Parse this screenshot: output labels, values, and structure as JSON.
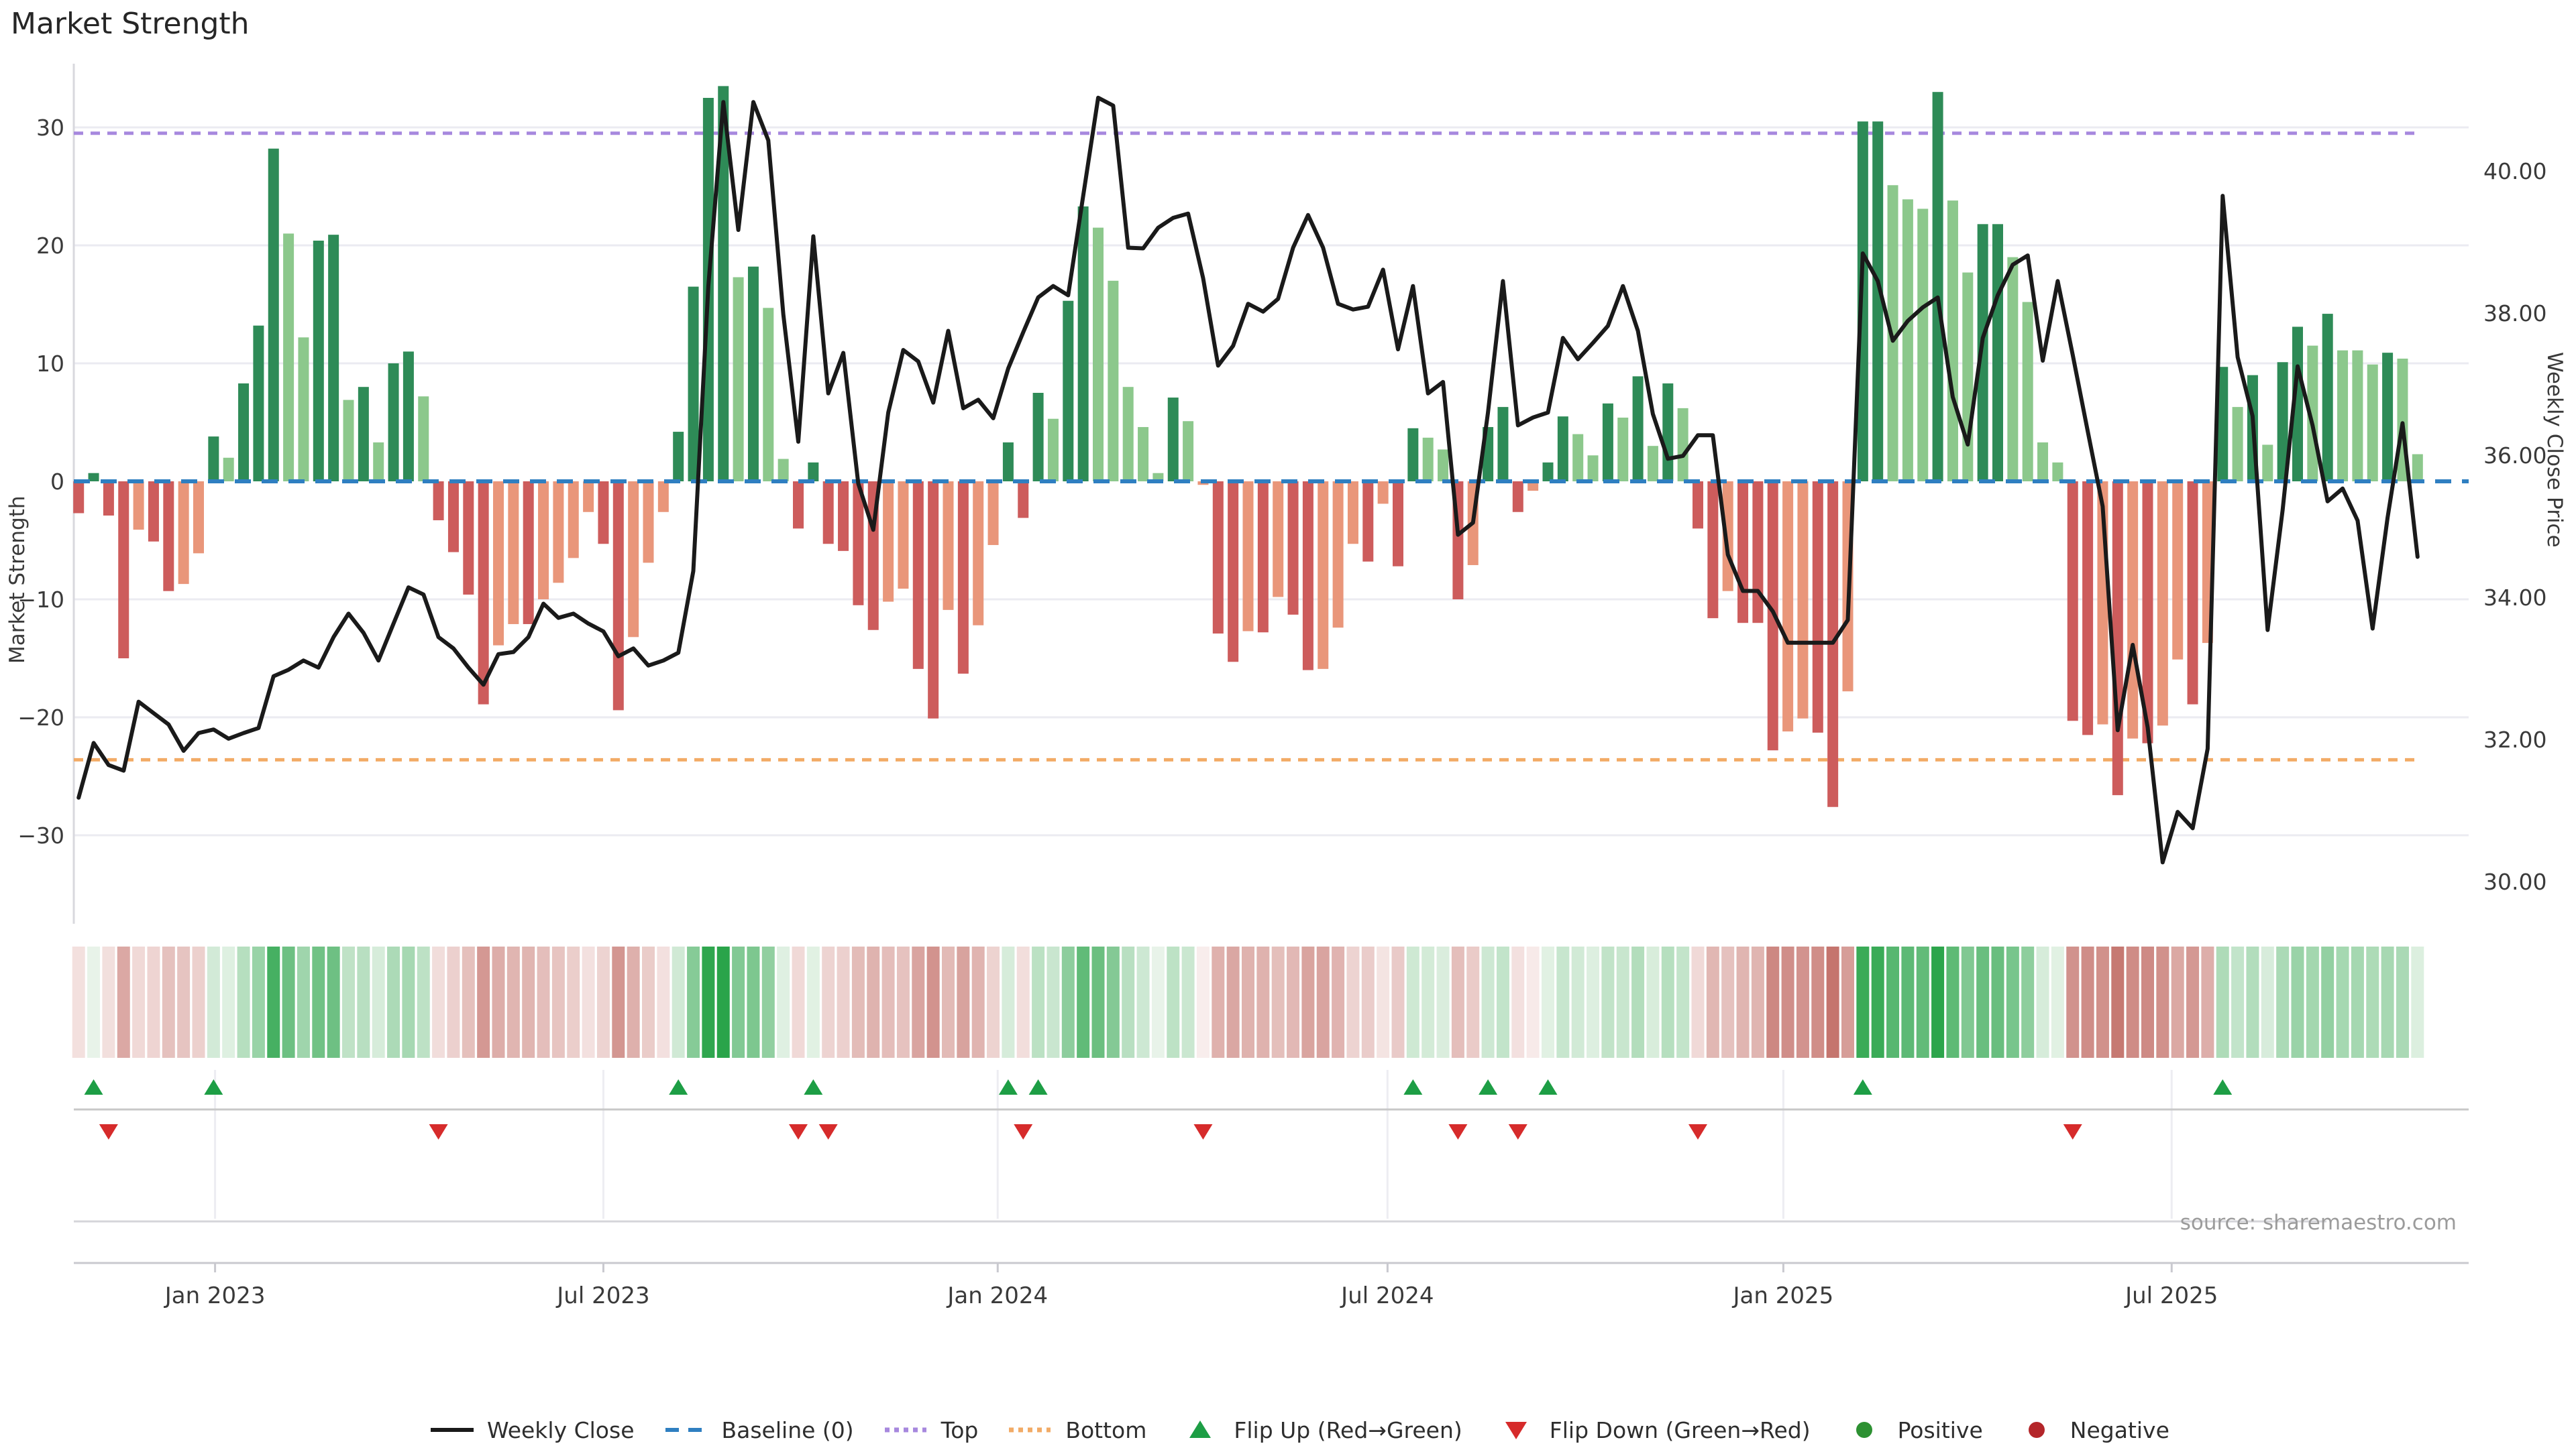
{
  "title": "Market Strength",
  "y_left": {
    "label": "Market Strength",
    "ticks": [
      30,
      20,
      10,
      0,
      -10,
      -20,
      -30
    ],
    "tick_labels": [
      "30",
      "20",
      "10",
      "0",
      "−10",
      "−20",
      "−30"
    ]
  },
  "y_right": {
    "label": "Weekly Close Price",
    "ticks": [
      40,
      38,
      36,
      34,
      32,
      30
    ],
    "tick_labels": [
      "40.00",
      "38.00",
      "36.00",
      "34.00",
      "32.00",
      "30.00"
    ]
  },
  "x_ticks": [
    {
      "label": "Jan 2023",
      "week": 9.1
    },
    {
      "label": "Jul 2023",
      "week": 35.0
    },
    {
      "label": "Jan 2024",
      "week": 61.3
    },
    {
      "label": "Jul 2024",
      "week": 87.3
    },
    {
      "label": "Jan 2025",
      "week": 113.7
    },
    {
      "label": "Jul 2025",
      "week": 139.6
    }
  ],
  "source": "source: sharemaestro.com",
  "legend": [
    {
      "label": "Weekly Close",
      "swatch": "line",
      "color": "#1a1a1a"
    },
    {
      "label": "Baseline (0)",
      "swatch": "dashed-line",
      "color": "#2f7fc1"
    },
    {
      "label": "Top",
      "swatch": "dotted-line",
      "color": "#a788de"
    },
    {
      "label": "Bottom",
      "swatch": "dotted-line",
      "color": "#f2ab66"
    },
    {
      "label": "Flip Up (Red→Green)",
      "swatch": "triangle-up",
      "color": "#1d9e45"
    },
    {
      "label": "Flip Down (Green→Red)",
      "swatch": "triangle-down",
      "color": "#d62b2b"
    },
    {
      "label": "Positive",
      "swatch": "dot",
      "color": "#2d9132"
    },
    {
      "label": "Negative",
      "swatch": "dot",
      "color": "#b4262a"
    }
  ],
  "colors": {
    "bar_pos_dark": "#2e8b57",
    "bar_pos_light": "#8cc88c",
    "bar_neg_dark": "#cd5c5c",
    "bar_neg_light": "#e9967a",
    "line": "#1a1a1a",
    "baseline": "#2f7fc1",
    "top_line": "#a788de",
    "bottom_line": "#f2ab66",
    "flip_up": "#1d9e45",
    "flip_down": "#d62b2b",
    "heat_pos_max": "#2aa44a",
    "heat_pos_min": "#eef6ee",
    "heat_neg_max": "#c4736c",
    "heat_neg_min": "#f9efee",
    "grid": "#ebebf1",
    "spine": "#d8d8de",
    "axis": "#c9c9cf",
    "band_divider": "#c8c8c8",
    "tick_text": "#3a3a3a"
  },
  "chart_data": {
    "type": "bar+line",
    "title": "Market Strength",
    "ylabel_left": "Market Strength",
    "ylabel_right": "Weekly Close Price",
    "n_weeks": 157,
    "strength_ylim": [
      -37.5,
      35.4
    ],
    "price_ylim": [
      29.41,
      41.51
    ],
    "baseline": 0,
    "top_threshold": 29.5,
    "bottom_threshold": -23.6,
    "grid": true,
    "legend_position": "bottom",
    "strength": [
      -2.7,
      0.7,
      -2.9,
      -15.0,
      -4.1,
      -5.1,
      -9.3,
      -8.7,
      -6.1,
      3.8,
      2.0,
      8.3,
      13.2,
      28.2,
      21.0,
      12.2,
      20.4,
      20.9,
      6.9,
      8.0,
      3.3,
      10.0,
      11.0,
      7.2,
      -3.3,
      -6.0,
      -9.6,
      -18.9,
      -13.9,
      -12.1,
      -12.1,
      -10.0,
      -8.6,
      -6.5,
      -2.6,
      -5.3,
      -19.4,
      -13.2,
      -6.9,
      -2.6,
      4.2,
      16.5,
      32.5,
      33.5,
      17.3,
      18.2,
      14.7,
      1.9,
      -4.0,
      1.6,
      -5.3,
      -5.9,
      -10.5,
      -12.6,
      -10.2,
      -9.1,
      -15.9,
      -20.1,
      -10.9,
      -16.3,
      -12.2,
      -5.4,
      3.3,
      -3.1,
      7.5,
      5.3,
      15.3,
      23.3,
      21.5,
      17.0,
      8.0,
      4.6,
      0.7,
      7.1,
      5.1,
      -0.3,
      -12.9,
      -15.3,
      -12.7,
      -12.8,
      -9.8,
      -11.3,
      -16.0,
      -15.9,
      -12.4,
      -5.3,
      -6.8,
      -1.9,
      -7.2,
      4.5,
      3.7,
      2.7,
      -10.0,
      -7.1,
      4.6,
      6.3,
      -2.6,
      -0.8,
      1.6,
      5.5,
      4.0,
      2.2,
      6.6,
      5.4,
      8.9,
      3.0,
      8.3,
      6.2,
      -4.0,
      -11.6,
      -9.3,
      -12.0,
      -12.0,
      -22.8,
      -21.2,
      -20.1,
      -21.3,
      -27.6,
      -17.8,
      30.5,
      30.5,
      25.1,
      23.9,
      23.1,
      33.0,
      23.8,
      17.7,
      21.8,
      21.8,
      19.0,
      15.2,
      3.3,
      1.6,
      -20.3,
      -21.5,
      -20.6,
      -26.6,
      -21.8,
      -22.2,
      -20.7,
      -15.1,
      -18.9,
      -13.7,
      9.7,
      6.3,
      9.0,
      3.1,
      10.1,
      13.1,
      11.5,
      14.2,
      11.1,
      11.1,
      9.9,
      10.9,
      10.4,
      2.3
    ],
    "bar_shade": "ddddlddlldldddllddldlddlddddlldllllddlllddddldllddddddllddldlldddlddllllldllddldlddllldlddlldldddlddlldldldlddldddllddlddllldllddllllddldldlldldldlddldllldll",
    "weekly_close": [
      31.18,
      31.95,
      31.64,
      31.56,
      32.53,
      32.37,
      32.21,
      31.84,
      32.09,
      32.14,
      32.01,
      32.09,
      32.16,
      32.89,
      32.98,
      33.11,
      33.01,
      33.44,
      33.77,
      33.5,
      33.11,
      33.63,
      34.14,
      34.04,
      33.44,
      33.28,
      33.01,
      32.77,
      33.2,
      33.23,
      33.44,
      33.91,
      33.71,
      33.77,
      33.63,
      33.52,
      33.17,
      33.28,
      33.04,
      33.11,
      33.22,
      34.37,
      38.38,
      40.97,
      39.17,
      40.97,
      40.43,
      37.98,
      36.19,
      39.08,
      36.87,
      37.44,
      35.6,
      34.95,
      36.6,
      37.48,
      37.32,
      36.74,
      37.75,
      36.66,
      36.78,
      36.52,
      37.22,
      37.73,
      38.22,
      38.38,
      38.25,
      39.65,
      41.03,
      40.92,
      38.92,
      38.91,
      39.2,
      39.34,
      39.4,
      38.49,
      37.26,
      37.54,
      38.13,
      38.02,
      38.2,
      38.92,
      39.38,
      38.92,
      38.13,
      38.05,
      38.09,
      38.61,
      37.49,
      38.38,
      36.87,
      37.03,
      34.88,
      35.05,
      36.6,
      38.45,
      36.42,
      36.53,
      36.6,
      37.65,
      37.35,
      37.58,
      37.82,
      38.38,
      37.75,
      36.58,
      35.95,
      35.99,
      36.28,
      36.28,
      34.6,
      34.09,
      34.09,
      33.8,
      33.36,
      33.36,
      33.36,
      33.36,
      33.68,
      38.84,
      38.45,
      37.61,
      37.89,
      38.08,
      38.22,
      36.82,
      36.15,
      37.65,
      38.25,
      38.68,
      38.81,
      37.33,
      38.45,
      37.41,
      36.34,
      35.28,
      32.13,
      33.33,
      32.17,
      30.27,
      30.98,
      30.75,
      31.87,
      39.65,
      37.38,
      36.55,
      33.54,
      35.23,
      37.25,
      36.42,
      35.35,
      35.53,
      35.08,
      33.56,
      35.12,
      36.45,
      34.57
    ],
    "flip_up_weeks": [
      1,
      9,
      40,
      49,
      62,
      64,
      89,
      94,
      98,
      119,
      143
    ],
    "flip_down_weeks": [
      2,
      24,
      48,
      50,
      63,
      75,
      92,
      96,
      108,
      133
    ],
    "heatmap_strip": true,
    "series_names": [
      "Market Strength (bars)",
      "Weekly Close (line)"
    ]
  }
}
